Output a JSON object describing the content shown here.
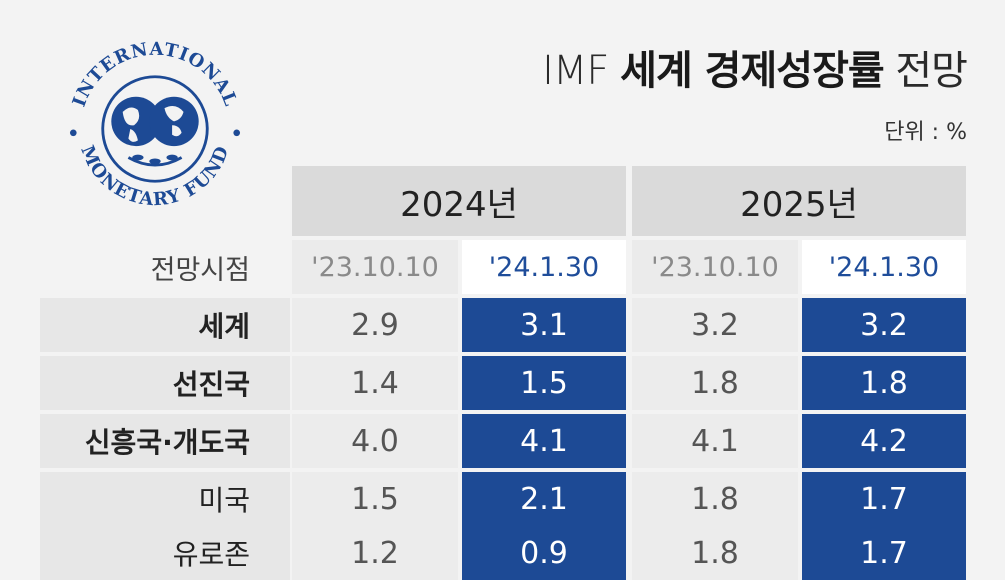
{
  "header": {
    "title_light_1": "IMF ",
    "title_bold": "세계 경제성장률",
    "title_light_2": " 전망",
    "unit": "단위 : %"
  },
  "logo": {
    "top_text": "INTERNATIONAL",
    "bottom_text": "MONETARY FUND",
    "color": "#1d4a95"
  },
  "table": {
    "row_header": "전망시점",
    "years": [
      "2024년",
      "2025년"
    ],
    "dates": [
      "'23.10.10",
      "'24.1.30",
      "'23.10.10",
      "'24.1.30"
    ],
    "rows": [
      {
        "label": "세계",
        "values": [
          "2.9",
          "3.1",
          "3.2",
          "3.2"
        ]
      },
      {
        "label": "선진국",
        "values": [
          "1.4",
          "1.5",
          "1.8",
          "1.8"
        ]
      },
      {
        "label": "신흥국·개도국",
        "values": [
          "4.0",
          "4.1",
          "4.1",
          "4.2"
        ]
      },
      {
        "label": "미국",
        "values": [
          "1.5",
          "2.1",
          "1.8",
          "1.7"
        ]
      },
      {
        "label": "유로존",
        "values": [
          "1.2",
          "0.9",
          "1.8",
          "1.7"
        ]
      }
    ]
  },
  "chart_data": {
    "type": "table",
    "title": "IMF 세계 경제성장률 전망",
    "unit": "단위 : %",
    "columns": [
      {
        "year": "2024년",
        "forecast_date": "'23.10.10"
      },
      {
        "year": "2024년",
        "forecast_date": "'24.1.30"
      },
      {
        "year": "2025년",
        "forecast_date": "'23.10.10"
      },
      {
        "year": "2025년",
        "forecast_date": "'24.1.30"
      }
    ],
    "rows": [
      {
        "label": "세계",
        "values": [
          2.9,
          3.1,
          3.2,
          3.2
        ]
      },
      {
        "label": "선진국",
        "values": [
          1.4,
          1.5,
          1.8,
          1.8
        ]
      },
      {
        "label": "신흥국·개도국",
        "values": [
          4.0,
          4.1,
          4.1,
          4.2
        ]
      },
      {
        "label": "미국",
        "values": [
          1.5,
          2.1,
          1.8,
          1.7
        ]
      },
      {
        "label": "유로존",
        "values": [
          1.2,
          0.9,
          1.8,
          1.7
        ]
      }
    ]
  },
  "colors": {
    "accent": "#1d4a95",
    "background": "#f3f3f3",
    "year_header": "#dadada"
  }
}
